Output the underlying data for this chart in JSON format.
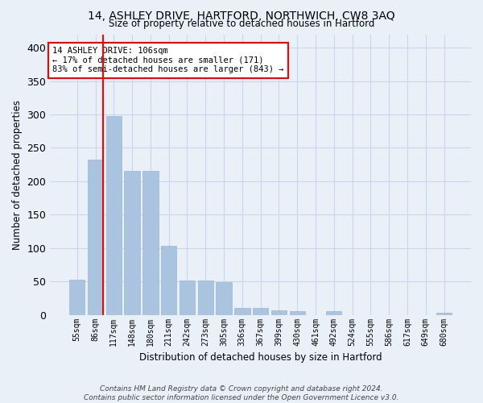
{
  "title1": "14, ASHLEY DRIVE, HARTFORD, NORTHWICH, CW8 3AQ",
  "title2": "Size of property relative to detached houses in Hartford",
  "xlabel": "Distribution of detached houses by size in Hartford",
  "ylabel": "Number of detached properties",
  "categories": [
    "55sqm",
    "86sqm",
    "117sqm",
    "148sqm",
    "180sqm",
    "211sqm",
    "242sqm",
    "273sqm",
    "305sqm",
    "336sqm",
    "367sqm",
    "399sqm",
    "430sqm",
    "461sqm",
    "492sqm",
    "524sqm",
    "555sqm",
    "586sqm",
    "617sqm",
    "649sqm",
    "680sqm"
  ],
  "values": [
    53,
    232,
    298,
    216,
    215,
    103,
    52,
    52,
    49,
    10,
    10,
    7,
    6,
    0,
    5,
    0,
    0,
    0,
    0,
    0,
    3
  ],
  "bar_color": "#aac4e0",
  "bar_edge_color": "#9ab8d8",
  "grid_color": "#c8d8ea",
  "background_color": "#eaf0f8",
  "vline_color": "red",
  "annotation_text": "14 ASHLEY DRIVE: 106sqm\n← 17% of detached houses are smaller (171)\n83% of semi-detached houses are larger (843) →",
  "annotation_box_color": "white",
  "annotation_box_edge": "red",
  "footer_text": "Contains HM Land Registry data © Crown copyright and database right 2024.\nContains public sector information licensed under the Open Government Licence v3.0.",
  "ylim": [
    0,
    420
  ],
  "yticks": [
    0,
    50,
    100,
    150,
    200,
    250,
    300,
    350,
    400
  ]
}
